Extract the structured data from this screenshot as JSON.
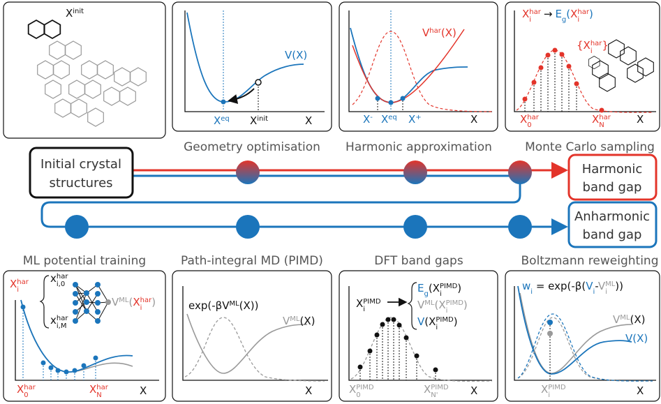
{
  "top": {
    "initial": {
      "x_init": [
        "X",
        "init"
      ]
    },
    "geometry": {
      "caption": "Geometry optimisation",
      "v": "V(X)",
      "x_eq": [
        "X",
        "eq"
      ],
      "x_init": [
        "X",
        "init"
      ],
      "axis": "X"
    },
    "harmonic": {
      "caption": "Harmonic approximation",
      "v_har": [
        "V",
        "har",
        "(X)"
      ],
      "x_minus": [
        "X",
        "-"
      ],
      "x_eq": [
        "X",
        "eq"
      ],
      "x_plus": [
        "X",
        "+"
      ],
      "axis": "X"
    },
    "monte_carlo": {
      "caption": "Monte Carlo sampling",
      "mapping": [
        "X",
        "i",
        "har",
        "→",
        "E",
        "g",
        "(",
        "X",
        "i",
        "har",
        ")"
      ],
      "set": [
        "{X",
        "i",
        "har",
        "}"
      ],
      "x0": [
        "X",
        "0",
        "har"
      ],
      "xn": [
        "X",
        "N",
        "har"
      ],
      "axis": "X"
    }
  },
  "flow": {
    "start": [
      "Initial crystal",
      "structures"
    ],
    "harmonic": [
      "Harmonic",
      "band gap"
    ],
    "anharmonic": [
      "Anharmonic",
      "band gap"
    ]
  },
  "bottom": {
    "ml": {
      "caption": "ML potential training",
      "xi": [
        "X",
        "i",
        "har"
      ],
      "x_i0": [
        "x",
        "i,0",
        "har"
      ],
      "x_iM": [
        "x",
        "i,M",
        "har"
      ],
      "v_ml": [
        "V",
        "ML",
        "(",
        "X",
        "i",
        "har",
        ")"
      ],
      "x0": [
        "X",
        "0",
        "har"
      ],
      "xn": [
        "X",
        "N",
        "har"
      ],
      "axis": "X"
    },
    "pimd": {
      "caption": "Path-integral MD (PIMD)",
      "exp": [
        "exp(-β",
        "V",
        "ML",
        "(X))"
      ],
      "v_ml": [
        "V",
        "ML",
        "(X)"
      ],
      "axis": "X"
    },
    "dft": {
      "caption": "DFT band gaps",
      "xi": [
        "X",
        "i",
        "PIMD"
      ],
      "eg": [
        "E",
        "g",
        "(X",
        "i",
        "PIMD",
        ")"
      ],
      "vml": [
        "V",
        "ML",
        "(X",
        "i",
        "PIMD",
        ")"
      ],
      "v": [
        "V",
        "(X",
        "i",
        "PIMD",
        ")"
      ],
      "x0": [
        "X",
        "0",
        "PIMD"
      ],
      "xn": [
        "X",
        "N'",
        "PIMD"
      ],
      "axis": "X"
    },
    "boltzmann": {
      "caption": "Boltzmann reweighting",
      "w": [
        "w",
        "i",
        " = exp(-β(",
        "V",
        "i",
        "-",
        "V",
        "i",
        "ML",
        "))"
      ],
      "v_ml": [
        "V",
        "ML",
        "(X)"
      ],
      "v": "V(X)",
      "xi": [
        "X",
        "i",
        "PIMD"
      ],
      "axis": "X"
    }
  }
}
